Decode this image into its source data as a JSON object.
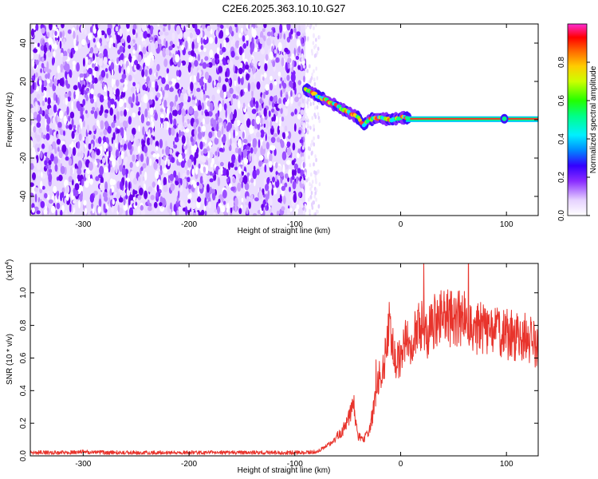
{
  "title": "C2E6.2025.363.10.10.G27",
  "chart_data": [
    {
      "type": "heatmap",
      "xlabel": "Height of straight line (km)",
      "ylabel": "Frequency (Hz)",
      "xlim": [
        -350,
        130
      ],
      "ylim": [
        -50,
        50
      ],
      "xticks": [
        -300,
        -200,
        -100,
        0,
        100
      ],
      "yticks": [
        -40,
        -20,
        0,
        20,
        40
      ],
      "noise_region_x": [
        -350,
        -90
      ],
      "signal_track": {
        "x": [
          -90,
          -80,
          -70,
          -60,
          -50,
          -40,
          -35,
          -30,
          -20,
          -10,
          0,
          5,
          20,
          50,
          80,
          100,
          130
        ],
        "y": [
          16,
          13,
          10,
          7,
          4,
          1,
          -3,
          0,
          1,
          0,
          1,
          1,
          0.5,
          0.5,
          0.5,
          0.5,
          0.5
        ]
      },
      "colorbar": {
        "label": "Normalized spectral amplitude",
        "range": [
          0,
          1
        ],
        "ticks": [
          "0.0",
          "0.2",
          "0.4",
          "0.6",
          "0.8"
        ],
        "tick_values": [
          0,
          0.2,
          0.4,
          0.6,
          0.8
        ]
      }
    },
    {
      "type": "line",
      "xlabel": "Height of straight line (km)",
      "ylabel": "SNR (10 * v/v)",
      "yscale_label": "(x10",
      "yscale_exp": "4",
      "yscale_close": ")",
      "xlim": [
        -350,
        130
      ],
      "ylim": [
        0,
        1.18
      ],
      "xticks": [
        -300,
        -200,
        -100,
        0,
        100
      ],
      "yticks": [
        "0.0",
        "0.2",
        "0.4",
        "0.6",
        "0.8",
        "1.0"
      ],
      "ytick_values": [
        0,
        0.2,
        0.4,
        0.6,
        0.8,
        1.0
      ],
      "series": [
        {
          "name": "SNR",
          "color": "#e8342c",
          "x": [
            -350,
            -320,
            -300,
            -280,
            -250,
            -220,
            -200,
            -180,
            -150,
            -120,
            -100,
            -90,
            -80,
            -75,
            -70,
            -65,
            -60,
            -55,
            -50,
            -45,
            -40,
            -35,
            -30,
            -25,
            -20,
            -15,
            -12,
            -10,
            -8,
            -5,
            0,
            5,
            10,
            15,
            20,
            25,
            30,
            35,
            40,
            45,
            50,
            55,
            60,
            65,
            70,
            75,
            80,
            85,
            90,
            95,
            100,
            105,
            110,
            115,
            120,
            125,
            130
          ],
          "values": [
            0.02,
            0.02,
            0.025,
            0.02,
            0.02,
            0.02,
            0.02,
            0.02,
            0.02,
            0.02,
            0.02,
            0.02,
            0.025,
            0.04,
            0.06,
            0.08,
            0.12,
            0.15,
            0.22,
            0.3,
            0.12,
            0.1,
            0.15,
            0.3,
            0.48,
            0.58,
            0.7,
            0.85,
            0.7,
            0.55,
            0.62,
            0.7,
            0.72,
            0.78,
            0.76,
            0.74,
            0.8,
            0.83,
            0.86,
            0.85,
            0.82,
            0.83,
            0.85,
            0.84,
            0.8,
            0.78,
            0.77,
            0.75,
            0.76,
            0.74,
            0.74,
            0.75,
            0.73,
            0.72,
            0.72,
            0.72,
            0.63
          ]
        }
      ]
    }
  ]
}
